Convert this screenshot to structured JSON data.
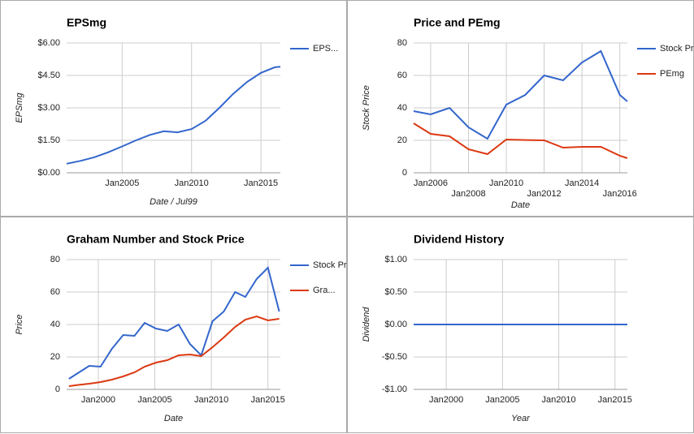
{
  "chart_data": [
    {
      "type": "line",
      "title": "EPSmg",
      "x_label": "Date / Jul99",
      "y_label": "EPSmg",
      "xlim": [
        2001,
        2016.4
      ],
      "xticks": [
        {
          "value": 2005,
          "label": "Jan2005"
        },
        {
          "value": 2010,
          "label": "Jan2010"
        },
        {
          "value": 2015,
          "label": "Jan2015"
        }
      ],
      "ylim": [
        0,
        6
      ],
      "yticks": [
        {
          "value": 0,
          "label": "$0.00"
        },
        {
          "value": 1.5,
          "label": "$1.50"
        },
        {
          "value": 3,
          "label": "$3.00"
        },
        {
          "value": 4.5,
          "label": "$4.50"
        },
        {
          "value": 6,
          "label": "$6.00"
        }
      ],
      "x": [
        2001,
        2002,
        2003,
        2004,
        2005,
        2006,
        2007,
        2008,
        2009,
        2010,
        2011,
        2012,
        2013,
        2014,
        2015,
        2016,
        2016.4
      ],
      "series": [
        {
          "name": "EPS...",
          "color": "#3366cc",
          "values": [
            0.42,
            0.55,
            0.72,
            0.95,
            1.22,
            1.5,
            1.75,
            1.92,
            1.87,
            2.02,
            2.4,
            3.0,
            3.65,
            4.2,
            4.62,
            4.88,
            4.9
          ]
        }
      ],
      "grid": true
    },
    {
      "type": "line",
      "title": "Price and PEmg",
      "x_label": "Date",
      "y_label": "Stock Price",
      "xlim": [
        2005.1,
        2016.4
      ],
      "xticks": [
        {
          "value": 2006,
          "label": "Jan2006"
        },
        {
          "value": 2008,
          "label": "Jan2008"
        },
        {
          "value": 2010,
          "label": "Jan2010"
        },
        {
          "value": 2012,
          "label": "Jan2012"
        },
        {
          "value": 2014,
          "label": "Jan2014"
        },
        {
          "value": 2016,
          "label": "Jan2016"
        }
      ],
      "ylim": [
        0,
        80
      ],
      "yticks": [
        0,
        20,
        40,
        60,
        80
      ],
      "x": [
        2005.1,
        2006,
        2007,
        2008,
        2009,
        2010,
        2011,
        2012,
        2013,
        2014,
        2015,
        2016,
        2016.4
      ],
      "series": [
        {
          "name": "Stock Price",
          "color": "#3366cc",
          "values": [
            38,
            36,
            40,
            28,
            21,
            42,
            48,
            60,
            57,
            68,
            75,
            48,
            44
          ]
        },
        {
          "name": "PEmg",
          "color": "#dc3912",
          "values": [
            30.5,
            24,
            22.5,
            14.5,
            11.5,
            20.5,
            20.2,
            20,
            15.5,
            16,
            16,
            10.5,
            9
          ]
        }
      ],
      "grid": true
    },
    {
      "type": "line",
      "title": "Graham Number and Stock Price",
      "x_label": "Date",
      "y_label": "Price",
      "xlim": [
        1997.2,
        2016.1
      ],
      "xticks": [
        {
          "value": 2000,
          "label": "Jan2000"
        },
        {
          "value": 2005,
          "label": "Jan2005"
        },
        {
          "value": 2010,
          "label": "Jan2010"
        },
        {
          "value": 2015,
          "label": "Jan2015"
        }
      ],
      "ylim": [
        0,
        80
      ],
      "yticks": [
        0,
        20,
        40,
        60,
        80
      ],
      "x": [
        1997.4,
        1998.3,
        1999.2,
        2000.2,
        2001.2,
        2002.2,
        2003.2,
        2004.1,
        2005.1,
        2006.1,
        2007.1,
        2008.1,
        2009.1,
        2010.1,
        2011.1,
        2012.1,
        2013,
        2014,
        2015,
        2016
      ],
      "series": [
        {
          "name": "Stock Price",
          "color": "#3366cc",
          "values": [
            6.5,
            10.5,
            14.5,
            14,
            25,
            33.5,
            33,
            41,
            37.5,
            36,
            40,
            28,
            21,
            42,
            48,
            60,
            57,
            68,
            75,
            48
          ]
        },
        {
          "name": "Gra...",
          "color": "#dc3912",
          "values": [
            2,
            2.8,
            3.5,
            4.5,
            6,
            8,
            10.5,
            14,
            16.5,
            18,
            21,
            21.5,
            20.5,
            26,
            32,
            38.5,
            43,
            45,
            42.5,
            43.5
          ]
        }
      ],
      "grid": true
    },
    {
      "type": "line",
      "title": "Dividend History",
      "x_label": "Year",
      "y_label": "Dividend",
      "xlim": [
        1997.1,
        2016.1
      ],
      "xticks": [
        {
          "value": 2000,
          "label": "Jan2000"
        },
        {
          "value": 2005,
          "label": "Jan2005"
        },
        {
          "value": 2010,
          "label": "Jan2010"
        },
        {
          "value": 2015,
          "label": "Jan2015"
        }
      ],
      "ylim": [
        -1,
        1
      ],
      "yticks": [
        {
          "value": -1,
          "label": "-$1.00"
        },
        {
          "value": -0.5,
          "label": "-$0.50"
        },
        {
          "value": 0,
          "label": "$0.00"
        },
        {
          "value": 0.5,
          "label": "$0.50"
        },
        {
          "value": 1,
          "label": "$1.00"
        }
      ],
      "x": [
        1997.1,
        2016.1
      ],
      "series": [
        {
          "name": "Dividend",
          "color": "#3366cc",
          "values": [
            0,
            0
          ]
        }
      ],
      "legend": false,
      "grid": true
    }
  ]
}
